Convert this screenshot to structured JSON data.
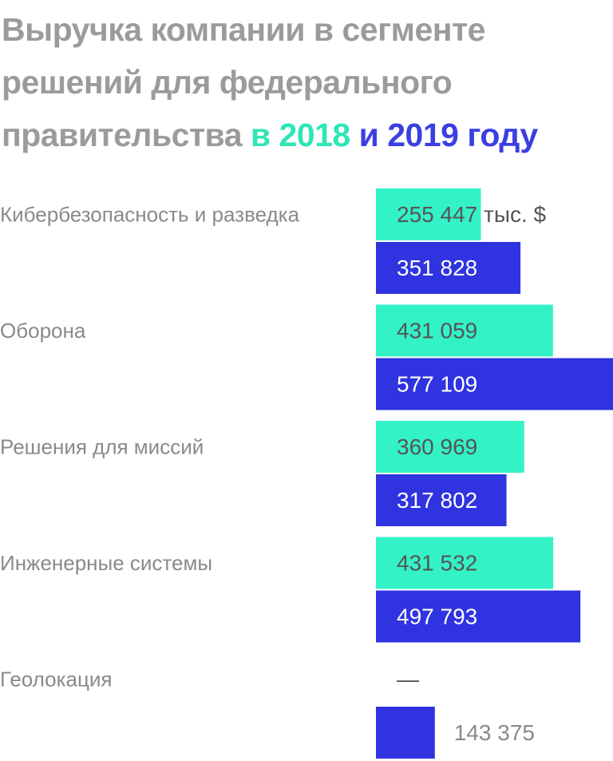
{
  "chart_data": {
    "type": "bar",
    "orientation": "horizontal",
    "title_segments": [
      {
        "text": "Выручка компании в сегменте решений для федерального правительства",
        "color": "#9b9b9b"
      },
      {
        "text": "в 2018",
        "color": "#2ee6b6"
      },
      {
        "text": "и 2019 году",
        "color": "#3a3fe2"
      }
    ],
    "categories": [
      "Кибербезопасность и разведка",
      "Оборона",
      "Решения для миссий",
      "Инженерные системы",
      "Геолокация"
    ],
    "series": [
      {
        "color": "#33f2c6",
        "values": [
          255447,
          431059,
          360969,
          431532,
          null
        ],
        "value_labels": [
          "255 447 тыс. $",
          "431 059",
          "360 969",
          "431 532",
          "—"
        ]
      },
      {
        "color": "#2f33e0",
        "values": [
          351828,
          577109,
          317802,
          497793,
          143375
        ],
        "value_labels": [
          "351 828",
          "577 109",
          "317 802",
          "497 793",
          "143 375"
        ]
      }
    ],
    "xlim": [
      0,
      577109
    ]
  }
}
